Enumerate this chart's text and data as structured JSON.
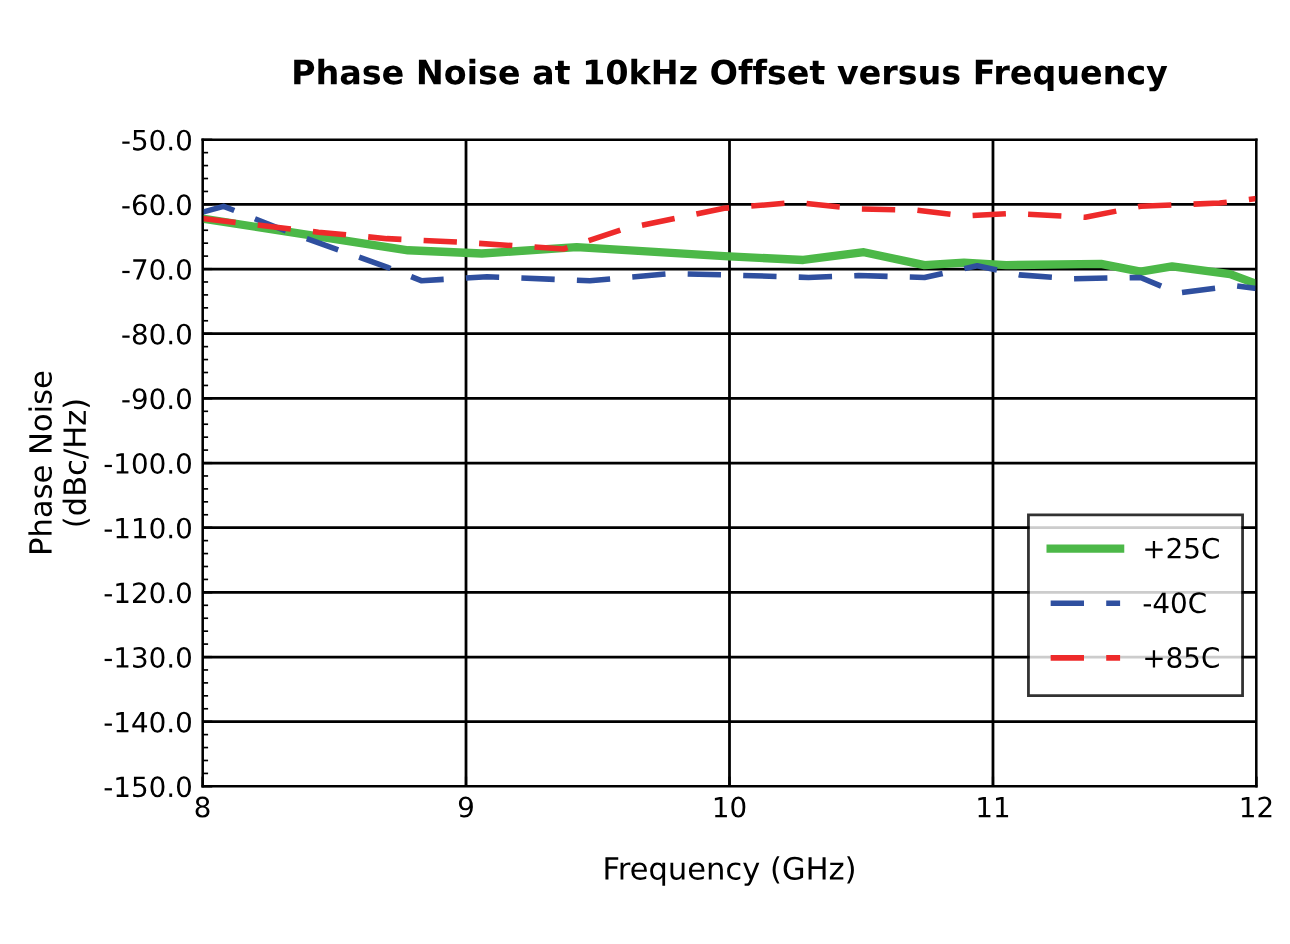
{
  "chart_data": {
    "type": "line",
    "title": "Phase Noise at 10kHz Offset versus Frequency",
    "xlabel": "Frequency (GHz)",
    "ylabel": "Phase Noise\n(dBc/Hz)",
    "xlim": [
      8,
      12
    ],
    "xticks": [
      8,
      9,
      10,
      11,
      12
    ],
    "ylim": [
      -150,
      -50
    ],
    "yticks": [
      {
        "value": -150,
        "label": "-150.0"
      },
      {
        "value": -140,
        "label": "-140.0"
      },
      {
        "value": -130,
        "label": "-130.0"
      },
      {
        "value": -120,
        "label": "-120.0"
      },
      {
        "value": -110,
        "label": "-110.0"
      },
      {
        "value": -100,
        "label": "-100.0"
      },
      {
        "value": -90,
        "label": "-90.0"
      },
      {
        "value": -80,
        "label": "-80.0"
      },
      {
        "value": -70,
        "label": "-70.0"
      },
      {
        "value": -60,
        "label": "-60.0"
      },
      {
        "value": -50,
        "label": "-50.0"
      }
    ],
    "grid": true,
    "legend": "right",
    "series": [
      {
        "name": "+25C",
        "color": "#4cb848",
        "line_style": "solid",
        "x": [
          8.0,
          8.78,
          9.06,
          9.42,
          9.98,
          10.28,
          10.51,
          10.74,
          10.89,
          11.05,
          11.41,
          11.56,
          11.68,
          11.9,
          12.0
        ],
        "values": [
          -62.2,
          -67.1,
          -67.6,
          -66.6,
          -68.0,
          -68.6,
          -67.4,
          -69.4,
          -69.0,
          -69.4,
          -69.2,
          -70.4,
          -69.6,
          -70.8,
          -72.3
        ]
      },
      {
        "name": "-40C",
        "color": "#2f4f9f",
        "line_style": "dashed",
        "x": [
          8.0,
          8.08,
          8.34,
          8.7,
          8.83,
          9.08,
          9.47,
          9.78,
          9.98,
          10.3,
          10.49,
          10.74,
          10.94,
          11.1,
          11.3,
          11.56,
          11.7,
          11.92,
          12.0
        ],
        "values": [
          -61.2,
          -60.3,
          -64.5,
          -69.7,
          -71.8,
          -71.2,
          -71.8,
          -70.7,
          -70.9,
          -71.3,
          -71.0,
          -71.3,
          -69.5,
          -70.9,
          -71.5,
          -71.3,
          -73.7,
          -72.6,
          -73.0
        ]
      },
      {
        "name": "+85C",
        "color": "#ee2a2a",
        "line_style": "dashed",
        "x": [
          8.0,
          8.44,
          8.7,
          9.0,
          9.37,
          9.6,
          9.98,
          10.25,
          10.49,
          10.71,
          10.89,
          11.07,
          11.35,
          11.56,
          11.86,
          12.0
        ],
        "values": [
          -62.2,
          -64.3,
          -65.3,
          -65.9,
          -66.9,
          -63.8,
          -60.6,
          -59.7,
          -60.7,
          -60.9,
          -61.8,
          -61.4,
          -62.0,
          -60.3,
          -59.8,
          -59.1
        ]
      }
    ]
  }
}
